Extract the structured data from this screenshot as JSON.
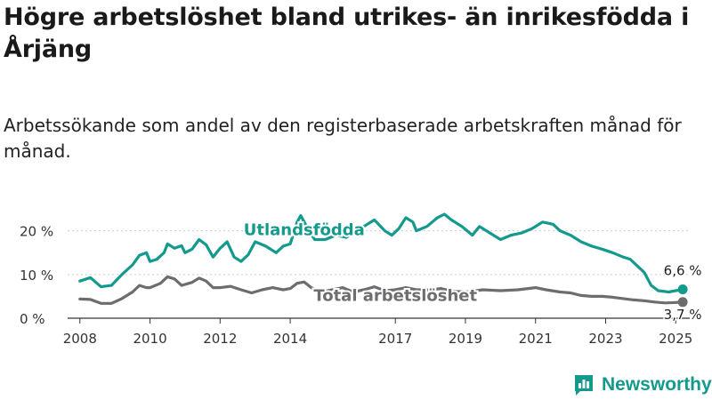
{
  "title": "Högre arbetslöshet bland utrikes- än inrikesfödda i Årjäng",
  "subtitle": "Arbetssökande som andel av den registerbaserade arbetskraften månad för månad.",
  "brand": "Newsworthy",
  "colors": {
    "foreign": "#139a8d",
    "total": "#6d6d70",
    "axis": "#333333",
    "grid": "#cccccc"
  },
  "chart_data": {
    "type": "line",
    "x_range": [
      2007.65,
      2025.4
    ],
    "ylim": [
      0,
      24
    ],
    "yticks": [
      0,
      10,
      20
    ],
    "ytick_labels": [
      "0 %",
      "10 %",
      "20 %"
    ],
    "xticks": [
      2008,
      2010,
      2012,
      2014,
      2017,
      2019,
      2021,
      2023,
      2025
    ],
    "xtick_labels": [
      "2008",
      "2010",
      "2012",
      "2014",
      "2017",
      "2019",
      "2021",
      "2023",
      "2025"
    ],
    "grid": true,
    "series": [
      {
        "name": "Utlandsfödda",
        "color": "#139a8d",
        "end_label": "6,6 %",
        "points": [
          [
            2008.0,
            8.5
          ],
          [
            2008.3,
            9.3
          ],
          [
            2008.6,
            7.2
          ],
          [
            2008.9,
            7.5
          ],
          [
            2009.2,
            10.0
          ],
          [
            2009.5,
            12.2
          ],
          [
            2009.7,
            14.4
          ],
          [
            2009.9,
            15.0
          ],
          [
            2010.0,
            13.0
          ],
          [
            2010.2,
            13.5
          ],
          [
            2010.4,
            15.0
          ],
          [
            2010.5,
            17.0
          ],
          [
            2010.7,
            16.0
          ],
          [
            2010.9,
            16.6
          ],
          [
            2011.0,
            15.0
          ],
          [
            2011.2,
            15.8
          ],
          [
            2011.4,
            18.0
          ],
          [
            2011.6,
            16.8
          ],
          [
            2011.8,
            14.0
          ],
          [
            2012.0,
            16.0
          ],
          [
            2012.2,
            17.5
          ],
          [
            2012.4,
            14.0
          ],
          [
            2012.6,
            13.0
          ],
          [
            2012.8,
            14.5
          ],
          [
            2013.0,
            17.5
          ],
          [
            2013.3,
            16.5
          ],
          [
            2013.6,
            15.0
          ],
          [
            2013.8,
            16.5
          ],
          [
            2014.0,
            17.0
          ],
          [
            2014.2,
            22.0
          ],
          [
            2014.3,
            23.5
          ],
          [
            2014.5,
            20.5
          ],
          [
            2014.7,
            18.0
          ],
          [
            2015.0,
            18.0
          ],
          [
            2015.3,
            19.0
          ],
          [
            2015.6,
            18.5
          ],
          [
            2015.9,
            20.0
          ],
          [
            2016.2,
            21.5
          ],
          [
            2016.4,
            22.5
          ],
          [
            2016.7,
            20.0
          ],
          [
            2016.9,
            19.0
          ],
          [
            2017.1,
            20.5
          ],
          [
            2017.3,
            23.0
          ],
          [
            2017.5,
            22.0
          ],
          [
            2017.6,
            20.0
          ],
          [
            2017.9,
            21.0
          ],
          [
            2018.2,
            23.0
          ],
          [
            2018.4,
            23.8
          ],
          [
            2018.6,
            22.5
          ],
          [
            2018.9,
            21.0
          ],
          [
            2019.2,
            19.0
          ],
          [
            2019.4,
            21.0
          ],
          [
            2019.7,
            19.5
          ],
          [
            2020.0,
            18.0
          ],
          [
            2020.3,
            19.0
          ],
          [
            2020.6,
            19.5
          ],
          [
            2020.9,
            20.5
          ],
          [
            2021.2,
            22.0
          ],
          [
            2021.5,
            21.5
          ],
          [
            2021.7,
            20.0
          ],
          [
            2022.0,
            19.0
          ],
          [
            2022.3,
            17.5
          ],
          [
            2022.6,
            16.5
          ],
          [
            2022.9,
            15.8
          ],
          [
            2023.2,
            15.0
          ],
          [
            2023.5,
            14.0
          ],
          [
            2023.7,
            13.5
          ],
          [
            2023.9,
            12.0
          ],
          [
            2024.1,
            10.5
          ],
          [
            2024.3,
            7.5
          ],
          [
            2024.5,
            6.3
          ],
          [
            2024.8,
            6.0
          ],
          [
            2025.0,
            6.3
          ],
          [
            2025.2,
            6.6
          ]
        ]
      },
      {
        "name": "Total arbetslöshet",
        "color": "#6d6d70",
        "end_label": "3,7 %",
        "points": [
          [
            2008.0,
            4.4
          ],
          [
            2008.3,
            4.3
          ],
          [
            2008.6,
            3.4
          ],
          [
            2008.9,
            3.4
          ],
          [
            2009.2,
            4.5
          ],
          [
            2009.5,
            6.0
          ],
          [
            2009.7,
            7.5
          ],
          [
            2009.9,
            7.0
          ],
          [
            2010.0,
            7.0
          ],
          [
            2010.3,
            8.0
          ],
          [
            2010.5,
            9.5
          ],
          [
            2010.7,
            9.0
          ],
          [
            2010.9,
            7.5
          ],
          [
            2011.2,
            8.2
          ],
          [
            2011.4,
            9.2
          ],
          [
            2011.6,
            8.5
          ],
          [
            2011.8,
            7.0
          ],
          [
            2012.0,
            7.0
          ],
          [
            2012.3,
            7.3
          ],
          [
            2012.6,
            6.5
          ],
          [
            2012.9,
            5.8
          ],
          [
            2013.2,
            6.5
          ],
          [
            2013.5,
            7.0
          ],
          [
            2013.8,
            6.5
          ],
          [
            2014.0,
            6.8
          ],
          [
            2014.2,
            8.0
          ],
          [
            2014.4,
            8.3
          ],
          [
            2014.6,
            7.0
          ],
          [
            2014.9,
            6.0
          ],
          [
            2015.2,
            6.5
          ],
          [
            2015.5,
            7.0
          ],
          [
            2015.8,
            6.0
          ],
          [
            2016.1,
            6.5
          ],
          [
            2016.4,
            7.2
          ],
          [
            2016.7,
            6.3
          ],
          [
            2017.0,
            6.5
          ],
          [
            2017.3,
            7.0
          ],
          [
            2017.6,
            6.5
          ],
          [
            2018.0,
            6.5
          ],
          [
            2018.3,
            6.8
          ],
          [
            2018.6,
            6.2
          ],
          [
            2019.0,
            6.0
          ],
          [
            2019.5,
            6.5
          ],
          [
            2020.0,
            6.3
          ],
          [
            2020.5,
            6.5
          ],
          [
            2021.0,
            7.0
          ],
          [
            2021.3,
            6.5
          ],
          [
            2021.7,
            6.0
          ],
          [
            2022.0,
            5.8
          ],
          [
            2022.3,
            5.2
          ],
          [
            2022.6,
            5.0
          ],
          [
            2022.9,
            5.0
          ],
          [
            2023.2,
            4.8
          ],
          [
            2023.5,
            4.5
          ],
          [
            2023.8,
            4.2
          ],
          [
            2024.1,
            4.0
          ],
          [
            2024.4,
            3.7
          ],
          [
            2024.7,
            3.5
          ],
          [
            2025.0,
            3.6
          ],
          [
            2025.2,
            3.7
          ]
        ]
      }
    ]
  }
}
